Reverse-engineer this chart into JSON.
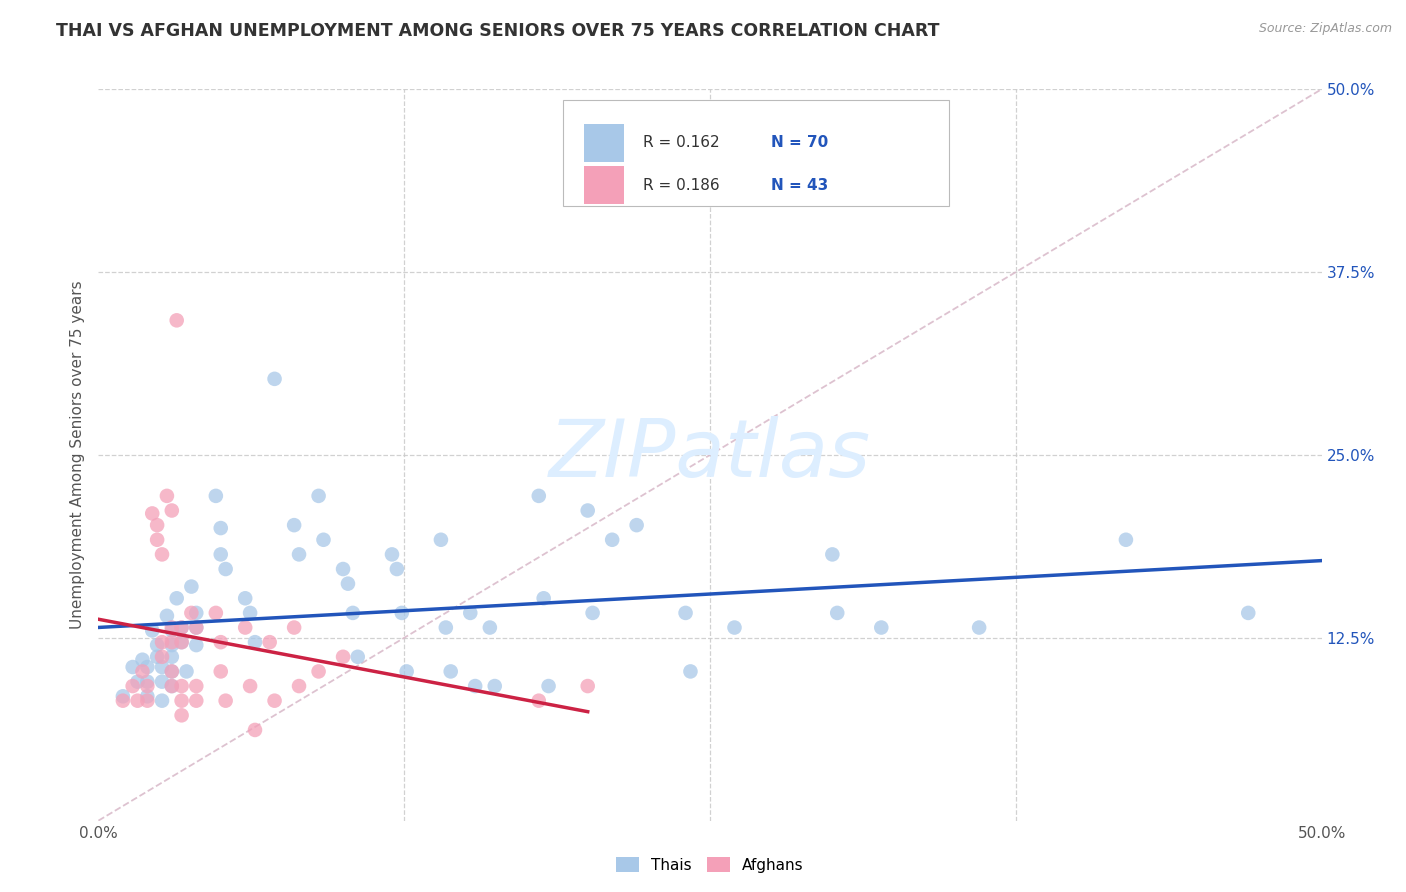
{
  "title": "THAI VS AFGHAN UNEMPLOYMENT AMONG SENIORS OVER 75 YEARS CORRELATION CHART",
  "source": "Source: ZipAtlas.com",
  "ylabel": "Unemployment Among Seniors over 75 years",
  "xlim": [
    0.0,
    0.5
  ],
  "ylim": [
    0.0,
    0.5
  ],
  "legend_r_thai": "0.162",
  "legend_n_thai": "70",
  "legend_r_afghan": "0.186",
  "legend_n_afghan": "43",
  "thai_color": "#a8c8e8",
  "afghan_color": "#f4a0b8",
  "trendline_thai_color": "#2255bb",
  "trendline_afghan_color": "#cc2244",
  "diagonal_color": "#d8b8c8",
  "watermark_color": "#ddeeff",
  "thai_points": [
    [
      0.01,
      0.085
    ],
    [
      0.014,
      0.105
    ],
    [
      0.016,
      0.095
    ],
    [
      0.018,
      0.11
    ],
    [
      0.02,
      0.105
    ],
    [
      0.02,
      0.095
    ],
    [
      0.02,
      0.085
    ],
    [
      0.022,
      0.13
    ],
    [
      0.024,
      0.12
    ],
    [
      0.024,
      0.112
    ],
    [
      0.026,
      0.105
    ],
    [
      0.026,
      0.095
    ],
    [
      0.026,
      0.082
    ],
    [
      0.028,
      0.14
    ],
    [
      0.03,
      0.13
    ],
    [
      0.03,
      0.12
    ],
    [
      0.03,
      0.112
    ],
    [
      0.03,
      0.102
    ],
    [
      0.03,
      0.092
    ],
    [
      0.032,
      0.152
    ],
    [
      0.034,
      0.132
    ],
    [
      0.034,
      0.122
    ],
    [
      0.036,
      0.102
    ],
    [
      0.038,
      0.16
    ],
    [
      0.04,
      0.142
    ],
    [
      0.04,
      0.132
    ],
    [
      0.04,
      0.12
    ],
    [
      0.048,
      0.222
    ],
    [
      0.05,
      0.2
    ],
    [
      0.05,
      0.182
    ],
    [
      0.052,
      0.172
    ],
    [
      0.06,
      0.152
    ],
    [
      0.062,
      0.142
    ],
    [
      0.064,
      0.122
    ],
    [
      0.072,
      0.302
    ],
    [
      0.08,
      0.202
    ],
    [
      0.082,
      0.182
    ],
    [
      0.09,
      0.222
    ],
    [
      0.092,
      0.192
    ],
    [
      0.1,
      0.172
    ],
    [
      0.102,
      0.162
    ],
    [
      0.104,
      0.142
    ],
    [
      0.106,
      0.112
    ],
    [
      0.12,
      0.182
    ],
    [
      0.122,
      0.172
    ],
    [
      0.124,
      0.142
    ],
    [
      0.126,
      0.102
    ],
    [
      0.14,
      0.192
    ],
    [
      0.142,
      0.132
    ],
    [
      0.144,
      0.102
    ],
    [
      0.152,
      0.142
    ],
    [
      0.154,
      0.092
    ],
    [
      0.16,
      0.132
    ],
    [
      0.162,
      0.092
    ],
    [
      0.18,
      0.222
    ],
    [
      0.182,
      0.152
    ],
    [
      0.184,
      0.092
    ],
    [
      0.2,
      0.212
    ],
    [
      0.202,
      0.142
    ],
    [
      0.21,
      0.192
    ],
    [
      0.22,
      0.202
    ],
    [
      0.24,
      0.142
    ],
    [
      0.242,
      0.102
    ],
    [
      0.26,
      0.132
    ],
    [
      0.3,
      0.182
    ],
    [
      0.302,
      0.142
    ],
    [
      0.32,
      0.132
    ],
    [
      0.36,
      0.132
    ],
    [
      0.42,
      0.192
    ],
    [
      0.47,
      0.142
    ]
  ],
  "afghan_points": [
    [
      0.01,
      0.082
    ],
    [
      0.014,
      0.092
    ],
    [
      0.016,
      0.082
    ],
    [
      0.018,
      0.102
    ],
    [
      0.02,
      0.092
    ],
    [
      0.02,
      0.082
    ],
    [
      0.022,
      0.21
    ],
    [
      0.024,
      0.202
    ],
    [
      0.024,
      0.192
    ],
    [
      0.026,
      0.182
    ],
    [
      0.026,
      0.122
    ],
    [
      0.026,
      0.112
    ],
    [
      0.028,
      0.222
    ],
    [
      0.03,
      0.212
    ],
    [
      0.03,
      0.132
    ],
    [
      0.03,
      0.122
    ],
    [
      0.03,
      0.102
    ],
    [
      0.03,
      0.092
    ],
    [
      0.032,
      0.342
    ],
    [
      0.034,
      0.132
    ],
    [
      0.034,
      0.122
    ],
    [
      0.034,
      0.092
    ],
    [
      0.034,
      0.082
    ],
    [
      0.034,
      0.072
    ],
    [
      0.038,
      0.142
    ],
    [
      0.04,
      0.132
    ],
    [
      0.04,
      0.092
    ],
    [
      0.04,
      0.082
    ],
    [
      0.048,
      0.142
    ],
    [
      0.05,
      0.122
    ],
    [
      0.05,
      0.102
    ],
    [
      0.052,
      0.082
    ],
    [
      0.06,
      0.132
    ],
    [
      0.062,
      0.092
    ],
    [
      0.064,
      0.062
    ],
    [
      0.07,
      0.122
    ],
    [
      0.072,
      0.082
    ],
    [
      0.08,
      0.132
    ],
    [
      0.082,
      0.092
    ],
    [
      0.09,
      0.102
    ],
    [
      0.1,
      0.112
    ],
    [
      0.18,
      0.082
    ],
    [
      0.2,
      0.092
    ]
  ]
}
